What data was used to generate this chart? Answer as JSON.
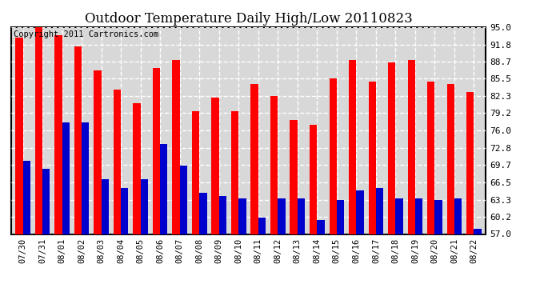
{
  "title": "Outdoor Temperature Daily High/Low 20110823",
  "copyright": "Copyright 2011 Cartronics.com",
  "dates": [
    "07/30",
    "07/31",
    "08/01",
    "08/02",
    "08/03",
    "08/04",
    "08/05",
    "08/06",
    "08/07",
    "08/08",
    "08/09",
    "08/10",
    "08/11",
    "08/12",
    "08/13",
    "08/14",
    "08/15",
    "08/16",
    "08/17",
    "08/18",
    "08/19",
    "08/20",
    "08/21",
    "08/22"
  ],
  "highs": [
    93.0,
    95.0,
    93.5,
    91.5,
    87.0,
    83.5,
    81.0,
    87.5,
    89.0,
    79.5,
    82.0,
    79.5,
    84.5,
    82.3,
    78.0,
    77.0,
    85.5,
    89.0,
    85.0,
    88.5,
    89.0,
    85.0,
    84.5,
    83.0
  ],
  "lows": [
    70.5,
    69.0,
    77.5,
    77.5,
    67.0,
    65.5,
    67.0,
    73.5,
    69.5,
    64.5,
    64.0,
    63.5,
    60.0,
    63.5,
    63.5,
    59.5,
    63.3,
    65.0,
    65.5,
    63.5,
    63.5,
    63.3,
    63.5,
    58.0
  ],
  "yticks": [
    57.0,
    60.2,
    63.3,
    66.5,
    69.7,
    72.8,
    76.0,
    79.2,
    82.3,
    85.5,
    88.7,
    91.8,
    95.0
  ],
  "ymin": 57.0,
  "ymax": 95.0,
  "high_color": "#ff0000",
  "low_color": "#0000cc",
  "bg_color": "#ffffff",
  "grid_color": "#aaaaaa",
  "title_fontsize": 12,
  "copyright_fontsize": 7.5,
  "bar_width": 0.38
}
